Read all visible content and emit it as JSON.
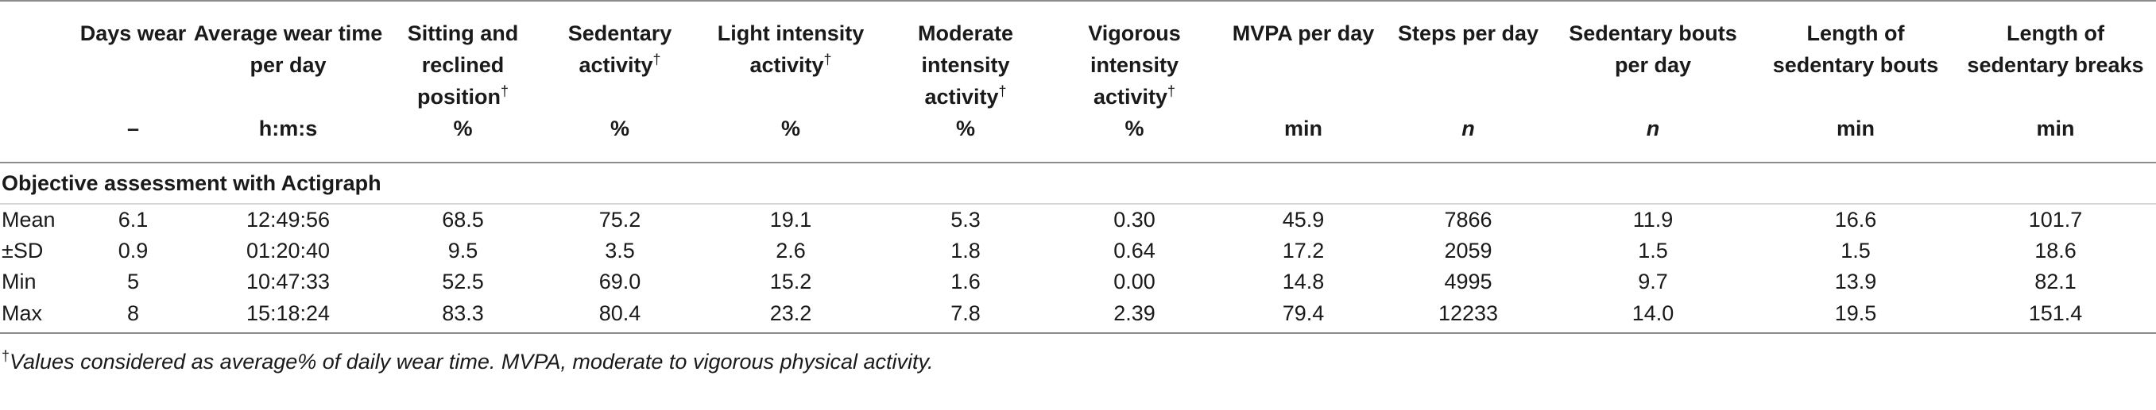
{
  "columns": [
    {
      "label": "",
      "unit": "",
      "sup": ""
    },
    {
      "label": "Days wear",
      "unit": "–",
      "sup": ""
    },
    {
      "label": "Average wear time per day",
      "unit": "h:m:s",
      "sup": ""
    },
    {
      "label": "Sitting and reclined position",
      "unit": "%",
      "sup": "†"
    },
    {
      "label": "Sedentary activity",
      "unit": "%",
      "sup": "†"
    },
    {
      "label": "Light intensity activity",
      "unit": "%",
      "sup": "†"
    },
    {
      "label": "Moderate intensity activity",
      "unit": "%",
      "sup": "†"
    },
    {
      "label": "Vigorous intensity activity",
      "unit": "%",
      "sup": "†"
    },
    {
      "label": "MVPA per day",
      "unit": "min",
      "sup": ""
    },
    {
      "label": "Steps per day",
      "unit": "n",
      "sup": ""
    },
    {
      "label": "Sedentary bouts per day",
      "unit": "n",
      "sup": ""
    },
    {
      "label": "Length of sedentary bouts",
      "unit": "min",
      "sup": ""
    },
    {
      "label": "Length of sedentary breaks",
      "unit": "min",
      "sup": ""
    }
  ],
  "section_title": "Objective assessment with Actigraph",
  "rows": [
    [
      "Mean",
      "6.1",
      "12:49:56",
      "68.5",
      "75.2",
      "19.1",
      "5.3",
      "0.30",
      "45.9",
      "7866",
      "11.9",
      "16.6",
      "101.7"
    ],
    [
      "±SD",
      "0.9",
      "01:20:40",
      "9.5",
      "3.5",
      "2.6",
      "1.8",
      "0.64",
      "17.2",
      "2059",
      "1.5",
      "1.5",
      "18.6"
    ],
    [
      "Min",
      "5",
      "10:47:33",
      "52.5",
      "69.0",
      "15.2",
      "1.6",
      "0.00",
      "14.8",
      "4995",
      "9.7",
      "13.9",
      "82.1"
    ],
    [
      "Max",
      "8",
      "15:18:24",
      "83.3",
      "80.4",
      "23.2",
      "7.8",
      "2.39",
      "79.4",
      "12233",
      "14.0",
      "19.5",
      "151.4"
    ]
  ],
  "footnote": {
    "mark": "†",
    "text": "Values considered as average% of daily wear time. MVPA, moderate to vigorous physical activity."
  }
}
